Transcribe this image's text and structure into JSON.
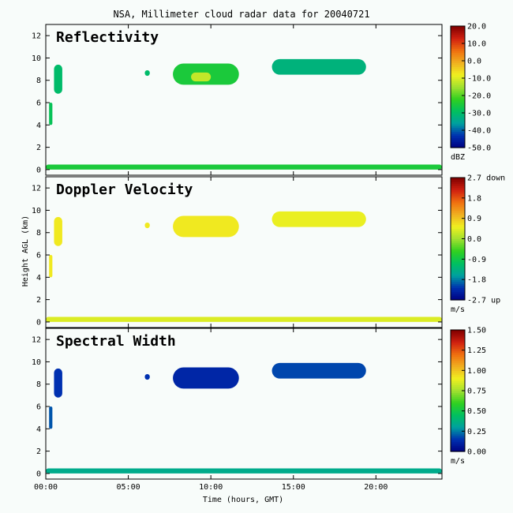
{
  "chart_data": {
    "type": "heatmap",
    "title": "NSA, Millimeter cloud radar data for 20040721",
    "xlabel": "Time (hours, GMT)",
    "ylabel": "Height AGL (km)",
    "x_ticks": [
      "00:00",
      "05:00",
      "10:00",
      "15:00",
      "20:00"
    ],
    "x_tick_hours": [
      0,
      5,
      10,
      15,
      20
    ],
    "xlim_hours": [
      0,
      24
    ],
    "ylim": [
      -0.5,
      13
    ],
    "y_ticks": [
      0,
      2,
      4,
      6,
      8,
      10,
      12
    ],
    "panels": [
      {
        "name": "Reflectivity",
        "unit": "dBZ",
        "colorbar_ticks": [
          "20.0",
          "10.0",
          "0.0",
          "-10.0",
          "-20.0",
          "-30.0",
          "-40.0",
          "-50.0"
        ],
        "colorbar_values": [
          20,
          10,
          0,
          -10,
          -20,
          -30,
          -40,
          -50
        ],
        "clim": [
          -50,
          20
        ],
        "echoes": [
          {
            "t0": 0.5,
            "t1": 1.0,
            "h0": 6.8,
            "h1": 9.4,
            "v": -30
          },
          {
            "t0": 0.2,
            "t1": 0.4,
            "h0": 4.0,
            "h1": 6.0,
            "v": -28
          },
          {
            "t0": 6.0,
            "t1": 6.3,
            "h0": 8.4,
            "h1": 8.9,
            "v": -30
          },
          {
            "t0": 7.7,
            "t1": 11.7,
            "h0": 7.6,
            "h1": 9.5,
            "v": -25
          },
          {
            "t0": 8.8,
            "t1": 10.0,
            "h0": 7.9,
            "h1": 8.7,
            "v": -12
          },
          {
            "t0": 13.7,
            "t1": 19.4,
            "h0": 8.5,
            "h1": 9.9,
            "v": -32
          },
          {
            "t0": 0.0,
            "t1": 24.0,
            "h0": 0.0,
            "h1": 0.45,
            "v": -25
          }
        ]
      },
      {
        "name": "Doppler Velocity",
        "unit": "m/s",
        "colorbar_ticks": [
          "2.7 down",
          "1.8",
          "0.9",
          "0.0",
          "-0.9",
          "-1.8",
          "-2.7 up"
        ],
        "colorbar_values": [
          2.7,
          1.8,
          0.9,
          0.0,
          -0.9,
          -1.8,
          -2.7
        ],
        "clim": [
          -2.7,
          2.7
        ],
        "echoes": [
          {
            "t0": 0.5,
            "t1": 1.0,
            "h0": 6.8,
            "h1": 9.4,
            "v": 0.6
          },
          {
            "t0": 0.2,
            "t1": 0.4,
            "h0": 4.0,
            "h1": 6.0,
            "v": 0.6
          },
          {
            "t0": 6.0,
            "t1": 6.3,
            "h0": 8.4,
            "h1": 8.9,
            "v": 0.6
          },
          {
            "t0": 7.7,
            "t1": 11.7,
            "h0": 7.6,
            "h1": 9.5,
            "v": 0.6
          },
          {
            "t0": 13.7,
            "t1": 19.4,
            "h0": 8.5,
            "h1": 9.9,
            "v": 0.5
          },
          {
            "t0": 0.0,
            "t1": 24.0,
            "h0": 0.0,
            "h1": 0.45,
            "v": 0.4
          }
        ]
      },
      {
        "name": "Spectral Width",
        "unit": "m/s",
        "colorbar_ticks": [
          "1.50",
          "1.25",
          "1.00",
          "0.75",
          "0.50",
          "0.25",
          "0.00"
        ],
        "colorbar_values": [
          1.5,
          1.25,
          1.0,
          0.75,
          0.5,
          0.25,
          0.0
        ],
        "clim": [
          0,
          1.5
        ],
        "echoes": [
          {
            "t0": 0.5,
            "t1": 1.0,
            "h0": 6.8,
            "h1": 9.4,
            "v": 0.15
          },
          {
            "t0": 0.2,
            "t1": 0.4,
            "h0": 4.0,
            "h1": 6.0,
            "v": 0.2
          },
          {
            "t0": 6.0,
            "t1": 6.3,
            "h0": 8.4,
            "h1": 8.9,
            "v": 0.15
          },
          {
            "t0": 7.7,
            "t1": 11.7,
            "h0": 7.6,
            "h1": 9.5,
            "v": 0.12
          },
          {
            "t0": 13.7,
            "t1": 19.4,
            "h0": 8.5,
            "h1": 9.9,
            "v": 0.18
          },
          {
            "t0": 0.0,
            "t1": 24.0,
            "h0": 0.0,
            "h1": 0.45,
            "v": 0.35
          }
        ]
      }
    ]
  }
}
